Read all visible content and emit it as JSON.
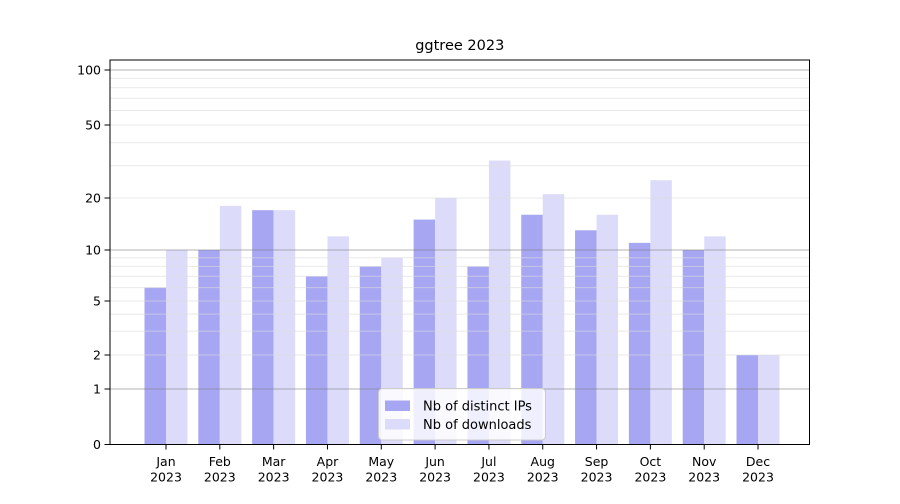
{
  "figure": {
    "title": "ggtree 2023"
  },
  "chart_data": {
    "type": "bar",
    "title": "ggtree 2023",
    "year_label": "2023",
    "categories": [
      "Jan",
      "Feb",
      "Mar",
      "Apr",
      "May",
      "Jun",
      "Jul",
      "Aug",
      "Sep",
      "Oct",
      "Nov",
      "Dec"
    ],
    "series": [
      {
        "name": "Nb of distinct IPs",
        "values": [
          6,
          10,
          17,
          7,
          8,
          15,
          8,
          16,
          13,
          11,
          10,
          2
        ]
      },
      {
        "name": "Nb of downloads",
        "values": [
          10,
          18,
          17,
          12,
          9,
          20,
          32,
          21,
          16,
          25,
          12,
          2
        ]
      }
    ],
    "xlabel": "",
    "ylabel": "",
    "yscale": "pseudo-log",
    "yticks": [
      0,
      1,
      2,
      5,
      10,
      20,
      50,
      100
    ],
    "minor_gridlines": [
      2,
      3,
      4,
      5,
      6,
      7,
      8,
      9,
      20,
      30,
      40,
      50,
      60,
      70,
      80,
      90
    ],
    "major_gridlines": [
      1,
      10,
      100
    ],
    "ylim": [
      0,
      130
    ],
    "grid": "horizontal",
    "legend_position": "lower center",
    "colors": {
      "ips": "#a6a6f3",
      "downloads": "#dcdcfa",
      "grid_major": "#808080",
      "grid_minor": "#dcdcdc",
      "axis": "#000000",
      "background": "#ffffff"
    }
  }
}
